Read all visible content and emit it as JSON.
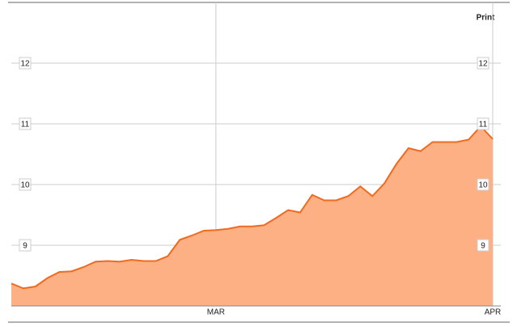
{
  "chart_data": {
    "type": "area",
    "categories": [
      null,
      null,
      null,
      null,
      null,
      null,
      null,
      null,
      null,
      null,
      null,
      null,
      null,
      null,
      null,
      null,
      null,
      "MAR",
      null,
      null,
      null,
      null,
      null,
      null,
      null,
      null,
      null,
      null,
      null,
      null,
      null,
      null,
      null,
      null,
      null,
      null,
      null,
      null,
      null,
      null,
      "APR"
    ],
    "values": [
      8.37,
      8.29,
      8.32,
      8.46,
      8.56,
      8.57,
      8.64,
      8.73,
      8.74,
      8.73,
      8.76,
      8.74,
      8.74,
      8.82,
      9.09,
      9.16,
      9.24,
      9.25,
      9.27,
      9.31,
      9.31,
      9.33,
      9.45,
      9.58,
      9.54,
      9.83,
      9.74,
      9.74,
      9.81,
      9.97,
      9.81,
      10.02,
      10.34,
      10.6,
      10.55,
      10.7,
      10.7,
      10.7,
      10.74,
      10.96,
      10.75
    ],
    "color": "#f06a1f",
    "fill_color": "#fdb083",
    "ylim": [
      8,
      13
    ],
    "yticks": [
      9,
      10,
      11,
      12
    ],
    "grid": true
  },
  "toolbar": {
    "print": "Print"
  }
}
